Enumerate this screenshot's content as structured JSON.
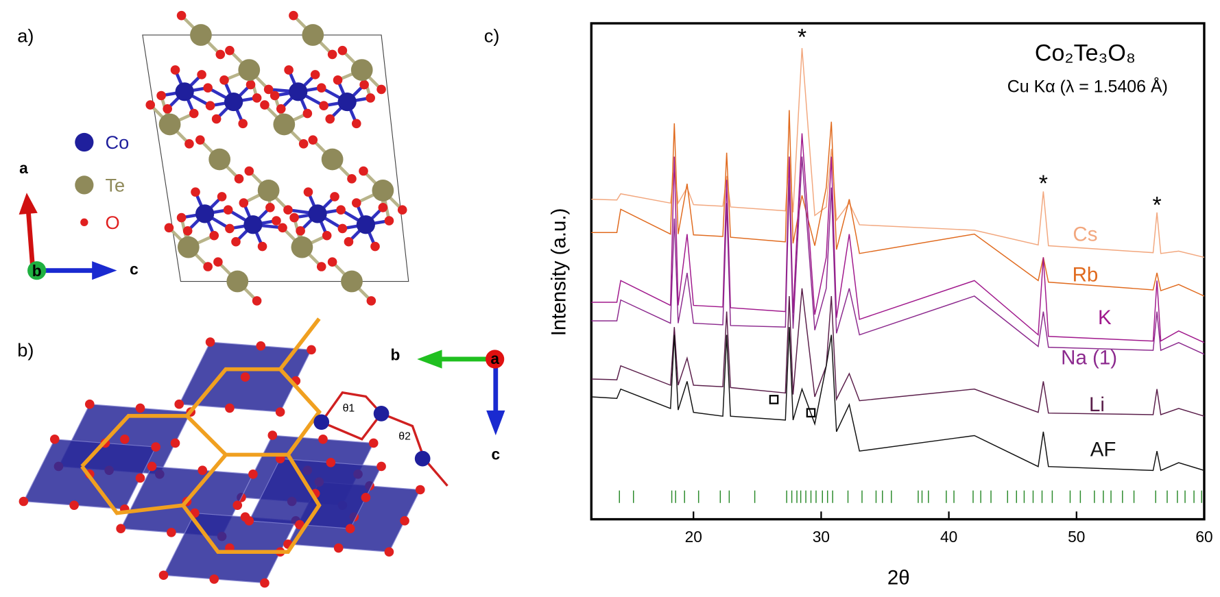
{
  "panels": {
    "a": "a)",
    "b": "b)",
    "c": "c)"
  },
  "structure": {
    "legend": [
      {
        "label": "Co",
        "color": "#1f1f9c"
      },
      {
        "label": "Te",
        "color": "#8f8a5a"
      },
      {
        "label": "O",
        "color": "#e02020"
      }
    ],
    "axes_a": [
      "a",
      "b",
      "c"
    ],
    "axes_b": [
      "b",
      "a",
      "c"
    ],
    "angles": [
      "θ1",
      "θ2"
    ]
  },
  "chart_data": {
    "type": "line",
    "title": "Co₂Te₃O₈",
    "subtitle": "Cu Kα (λ = 1.5406 Å)",
    "x_label": "2θ",
    "y_label": "Intensity (a.u.)",
    "x": [
      12,
      14,
      14.3,
      18.2,
      18.5,
      18.8,
      19.5,
      20,
      22.3,
      22.6,
      22.9,
      27.2,
      27.5,
      27.8,
      28.5,
      29.5,
      30.4,
      30.8,
      31.2,
      32.2,
      33,
      42,
      47,
      47.4,
      47.8,
      56,
      56.3,
      56.6,
      58,
      60
    ],
    "series": [
      {
        "name": "Cs",
        "color": "#f2a77e",
        "values": [
          413,
          412,
          420,
          408,
          453,
          408,
          428,
          406,
          404,
          443,
          403,
          398,
          468,
          396,
          608,
          392,
          403,
          478,
          386,
          408,
          380,
          373,
          354,
          423,
          353,
          344,
          396,
          343,
          346,
          338
        ]
      },
      {
        "name": "Rb",
        "color": "#e06a1e",
        "values": [
          370,
          370,
          400,
          368,
          511,
          368,
          433,
          367,
          365,
          473,
          364,
          358,
          528,
          356,
          418,
          353,
          428,
          513,
          348,
          413,
          343,
          368,
          308,
          338,
          306,
          296,
          318,
          295,
          303,
          288
        ]
      },
      {
        "name": "K",
        "color": "#a0188c",
        "values": [
          280,
          280,
          308,
          276,
          468,
          276,
          368,
          276,
          274,
          438,
          273,
          268,
          468,
          266,
          498,
          264,
          338,
          468,
          260,
          368,
          258,
          308,
          238,
          338,
          236,
          230,
          308,
          230,
          243,
          228
        ]
      },
      {
        "name": "Na (1)",
        "color": "#8c2a8e",
        "values": [
          256,
          256,
          283,
          253,
          388,
          253,
          318,
          253,
          251,
          408,
          250,
          248,
          438,
          246,
          468,
          244,
          298,
          428,
          240,
          298,
          238,
          288,
          223,
          268,
          222,
          218,
          268,
          218,
          228,
          213
        ]
      },
      {
        "name": "Li",
        "color": "#5a1e4a",
        "values": [
          181,
          180,
          198,
          173,
          248,
          173,
          208,
          173,
          171,
          268,
          170,
          163,
          288,
          161,
          298,
          158,
          198,
          288,
          155,
          188,
          153,
          168,
          138,
          178,
          137,
          135,
          168,
          135,
          143,
          133
        ]
      },
      {
        "name": "AF",
        "color": "#111111",
        "values": [
          158,
          156,
          168,
          143,
          238,
          141,
          178,
          138,
          133,
          238,
          133,
          128,
          248,
          128,
          168,
          123,
          198,
          238,
          113,
          148,
          88,
          108,
          68,
          113,
          68,
          63,
          88,
          63,
          73,
          63
        ]
      }
    ],
    "reference_peaks": {
      "color": "#2a8a2a",
      "x": [
        14.2,
        15.3,
        18.3,
        18.6,
        19.3,
        20.4,
        22.1,
        22.8,
        24.8,
        27.3,
        27.7,
        28.1,
        28.4,
        28.8,
        29.2,
        29.6,
        30.1,
        30.5,
        30.9,
        32.1,
        33.2,
        34.3,
        34.8,
        35.5,
        37.6,
        37.9,
        38.4,
        39.8,
        40.4,
        41.9,
        42.5,
        43.3,
        44.6,
        45.3,
        45.9,
        46.6,
        47.3,
        48.1,
        49.5,
        50.3,
        51.4,
        52.1,
        52.7,
        53.6,
        54.5,
        56.2,
        57.1,
        57.9,
        58.5,
        59.2,
        59.8
      ]
    },
    "annotations": [
      {
        "text": "*",
        "x": 28.5
      },
      {
        "text": "*",
        "x": 47.4
      },
      {
        "text": "*",
        "x": 56.3
      }
    ],
    "impurity_markers": [
      26.3,
      29.2
    ],
    "xlim": [
      12,
      60
    ],
    "xticks": [
      20,
      30,
      40,
      50,
      60
    ],
    "ylim": [
      0,
      640
    ]
  }
}
